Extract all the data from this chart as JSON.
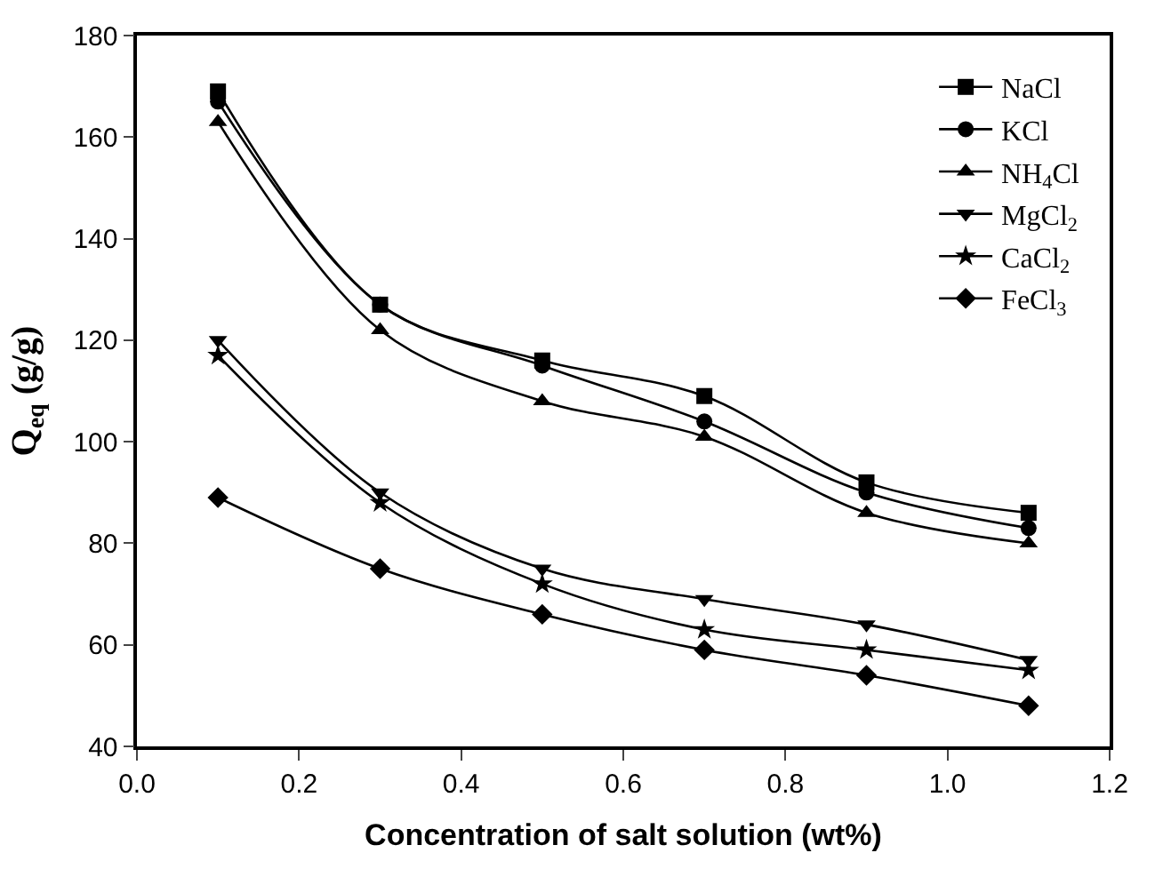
{
  "chart_data": {
    "type": "line",
    "xlabel": "Concentration of salt solution (wt%)",
    "ylabel": "Q$_{eq}$ (g/g)",
    "x": [
      0.1,
      0.3,
      0.5,
      0.7,
      0.9,
      1.1
    ],
    "series": [
      {
        "name": "NaCl",
        "color": "#000000",
        "marker": "square",
        "values": [
          169,
          127,
          116,
          109,
          92,
          86
        ]
      },
      {
        "name": "KCl",
        "color": "#000000",
        "marker": "circle",
        "values": [
          167,
          127,
          115,
          104,
          90,
          83
        ]
      },
      {
        "name": "NH$_{4}$Cl",
        "color": "#000000",
        "marker": "triangle",
        "values": [
          163,
          122,
          108,
          101,
          86,
          80
        ]
      },
      {
        "name": "MgCl$_{2}$",
        "color": "#000000",
        "marker": "triangle-down",
        "values": [
          120,
          90,
          75,
          69,
          64,
          57
        ]
      },
      {
        "name": "CaCl$_{2}$",
        "color": "#000000",
        "marker": "star",
        "values": [
          117,
          88,
          72,
          63,
          59,
          55
        ]
      },
      {
        "name": "FeCl$_{3}$",
        "color": "#000000",
        "marker": "diamond",
        "values": [
          89,
          75,
          66,
          59,
          54,
          48
        ]
      }
    ],
    "xlim": [
      0.0,
      1.2
    ],
    "xticks": [
      {
        "value": 0,
        "label": "0.0"
      },
      0.2,
      0.4,
      0.6,
      0.8,
      {
        "value": 1,
        "label": "1.0"
      },
      1.2
    ],
    "ylim": [
      40,
      180
    ],
    "yticks": [
      40,
      60,
      80,
      100,
      120,
      140,
      160,
      180
    ],
    "legend": "top right",
    "line_style": "solid"
  }
}
